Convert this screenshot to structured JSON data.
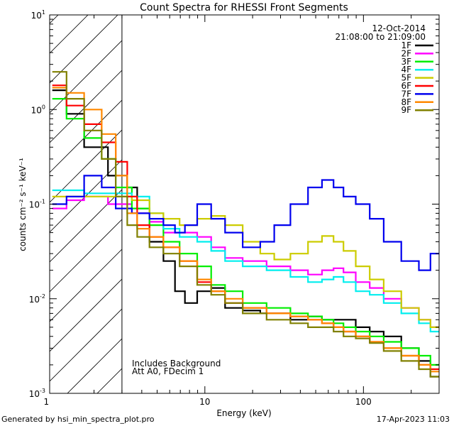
{
  "chart_data": {
    "type": "line",
    "title": "Count Spectra for RHESSI Front Segments",
    "xlabel": "Energy (keV)",
    "ylabel": "counts cm⁻² s⁻¹ keV⁻¹",
    "xscale": "log",
    "yscale": "log",
    "xlim": [
      1.05,
      300
    ],
    "ylim": [
      0.001,
      10
    ],
    "x_tick_labels": [
      {
        "value": 1,
        "label": "1"
      },
      {
        "value": 10,
        "label": "10"
      },
      {
        "value": 100,
        "label": "100"
      }
    ],
    "y_tick_labels": [
      {
        "value": 10,
        "base": "10",
        "exp": "1"
      },
      {
        "value": 1,
        "base": "10",
        "exp": "0"
      },
      {
        "value": 0.1,
        "base": "10",
        "exp": "-1"
      },
      {
        "value": 0.01,
        "base": "10",
        "exp": "-2"
      },
      {
        "value": 0.001,
        "base": "10",
        "exp": "-3"
      }
    ],
    "date": "12-Oct-2014",
    "time_range": "21:08:00 to 21:09:00",
    "excluded_region_max_energy": 3.0,
    "annotations": [
      "Includes Background",
      "Att A0, FDecim 1"
    ],
    "series": [
      {
        "name": "1F",
        "color": "#000000",
        "x": [
          1.2,
          1.5,
          2,
          3,
          3.5,
          4,
          5,
          6,
          7,
          8,
          10,
          12,
          15,
          20,
          25,
          30,
          40,
          50,
          60,
          70,
          80,
          100,
          120,
          150,
          200,
          250,
          280
        ],
        "values": [
          1.6,
          0.9,
          0.4,
          0.2,
          0.15,
          0.09,
          0.04,
          0.025,
          0.012,
          0.009,
          0.012,
          0.013,
          0.008,
          0.0075,
          0.007,
          0.007,
          0.006,
          0.0065,
          0.006,
          0.006,
          0.006,
          0.005,
          0.0045,
          0.004,
          0.003,
          0.0022,
          0.0015
        ]
      },
      {
        "name": "2F",
        "color": "#ff00ff",
        "x": [
          1.2,
          1.5,
          2,
          3,
          4,
          5,
          6,
          8,
          10,
          12,
          15,
          20,
          30,
          40,
          50,
          60,
          70,
          80,
          100,
          120,
          150,
          200,
          250,
          280
        ],
        "values": [
          0.09,
          0.11,
          0.12,
          0.1,
          0.08,
          0.065,
          0.05,
          0.05,
          0.045,
          0.035,
          0.027,
          0.025,
          0.022,
          0.02,
          0.018,
          0.02,
          0.021,
          0.019,
          0.015,
          0.013,
          0.01,
          0.008,
          0.006,
          0.005
        ]
      },
      {
        "name": "3F",
        "color": "#00ee00",
        "x": [
          1.2,
          1.5,
          2,
          2.5,
          3,
          4,
          5,
          6,
          8,
          10,
          12,
          15,
          20,
          30,
          40,
          50,
          60,
          70,
          80,
          100,
          120,
          150,
          200,
          250,
          280
        ],
        "values": [
          1.3,
          0.8,
          0.5,
          0.3,
          0.15,
          0.09,
          0.06,
          0.04,
          0.03,
          0.022,
          0.014,
          0.012,
          0.009,
          0.008,
          0.007,
          0.0065,
          0.006,
          0.0055,
          0.005,
          0.0045,
          0.004,
          0.0035,
          0.003,
          0.0025,
          0.002
        ]
      },
      {
        "name": "4F",
        "color": "#00eeee",
        "x": [
          1.2,
          1.5,
          2,
          3,
          4,
          5,
          6,
          8,
          10,
          12,
          15,
          20,
          30,
          40,
          50,
          60,
          70,
          80,
          100,
          120,
          150,
          200,
          250,
          280
        ],
        "values": [
          0.14,
          0.14,
          0.13,
          0.13,
          0.12,
          0.08,
          0.055,
          0.045,
          0.04,
          0.032,
          0.025,
          0.022,
          0.02,
          0.017,
          0.015,
          0.016,
          0.017,
          0.015,
          0.012,
          0.011,
          0.009,
          0.007,
          0.0055,
          0.0045
        ]
      },
      {
        "name": "5F",
        "color": "#cccc00",
        "x": [
          1.2,
          1.5,
          2,
          3,
          4,
          5,
          6,
          8,
          10,
          12,
          15,
          20,
          25,
          30,
          40,
          50,
          60,
          70,
          80,
          100,
          120,
          150,
          200,
          250,
          280
        ],
        "values": [
          0.12,
          0.12,
          0.12,
          0.12,
          0.11,
          0.08,
          0.07,
          0.06,
          0.07,
          0.075,
          0.06,
          0.04,
          0.03,
          0.026,
          0.03,
          0.04,
          0.046,
          0.04,
          0.032,
          0.022,
          0.016,
          0.012,
          0.008,
          0.006,
          0.005
        ]
      },
      {
        "name": "6F",
        "color": "#ff0000",
        "x": [
          1.2,
          1.5,
          2,
          2.5,
          3,
          3.5,
          4,
          5,
          6,
          8,
          10,
          12,
          15,
          20,
          30,
          40,
          50,
          60,
          70,
          80,
          100,
          120,
          150,
          200,
          250,
          280
        ],
        "values": [
          1.8,
          1.1,
          0.7,
          0.45,
          0.28,
          0.12,
          0.06,
          0.045,
          0.035,
          0.025,
          0.015,
          0.012,
          0.009,
          0.008,
          0.007,
          0.0065,
          0.006,
          0.0055,
          0.005,
          0.0045,
          0.004,
          0.0035,
          0.003,
          0.0025,
          0.002,
          0.0018
        ]
      },
      {
        "name": "7F",
        "color": "#0000ee",
        "x": [
          1.2,
          1.5,
          2,
          2.5,
          3,
          4,
          5,
          6,
          7,
          8,
          10,
          12,
          15,
          20,
          25,
          30,
          40,
          50,
          60,
          70,
          80,
          100,
          120,
          150,
          200,
          250,
          280
        ],
        "values": [
          0.1,
          0.12,
          0.2,
          0.15,
          0.09,
          0.08,
          0.07,
          0.06,
          0.05,
          0.06,
          0.1,
          0.07,
          0.05,
          0.035,
          0.04,
          0.06,
          0.1,
          0.15,
          0.18,
          0.15,
          0.12,
          0.1,
          0.07,
          0.04,
          0.025,
          0.02,
          0.03
        ]
      },
      {
        "name": "8F",
        "color": "#ff8800",
        "x": [
          1.2,
          1.5,
          2,
          2.5,
          3,
          3.5,
          4,
          5,
          6,
          8,
          10,
          12,
          15,
          20,
          30,
          40,
          50,
          60,
          70,
          80,
          100,
          120,
          150,
          200,
          250,
          280
        ],
        "values": [
          1.7,
          1.5,
          1.0,
          0.55,
          0.2,
          0.08,
          0.055,
          0.045,
          0.035,
          0.025,
          0.016,
          0.012,
          0.01,
          0.008,
          0.007,
          0.0065,
          0.006,
          0.0055,
          0.005,
          0.0045,
          0.004,
          0.0035,
          0.003,
          0.0025,
          0.002,
          0.0017
        ]
      },
      {
        "name": "9F",
        "color": "#808000",
        "x": [
          1.2,
          1.5,
          2,
          2.5,
          3,
          3.5,
          4,
          5,
          6,
          8,
          10,
          12,
          15,
          20,
          30,
          40,
          50,
          60,
          70,
          80,
          100,
          120,
          150,
          200,
          250,
          280
        ],
        "values": [
          2.5,
          1.3,
          0.6,
          0.3,
          0.12,
          0.06,
          0.045,
          0.035,
          0.03,
          0.022,
          0.014,
          0.011,
          0.009,
          0.007,
          0.006,
          0.0055,
          0.005,
          0.005,
          0.0045,
          0.004,
          0.0038,
          0.0034,
          0.0028,
          0.0022,
          0.0018,
          0.0015
        ]
      }
    ]
  },
  "footer": {
    "left": "Generated by hsi_min_spectra_plot.pro",
    "right": "17-Apr-2023 11:03"
  }
}
